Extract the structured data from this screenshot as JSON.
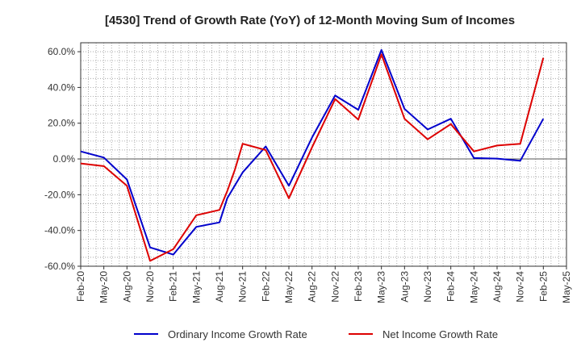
{
  "chart_data": {
    "type": "line",
    "title": "[4530]  Trend of Growth Rate (YoY) of 12-Month Moving Sum of Incomes",
    "xlabel": "",
    "ylabel": "",
    "ylim": [
      -60,
      65
    ],
    "yticks": [
      -60,
      -40,
      -20,
      0,
      20,
      40,
      60
    ],
    "ytick_labels": [
      "-60.0%",
      "-40.0%",
      "-20.0%",
      "0.0%",
      "20.0%",
      "40.0%",
      "60.0%"
    ],
    "x": [
      "Feb-20",
      "Mar-20",
      "Apr-20",
      "May-20",
      "Jun-20",
      "Jul-20",
      "Aug-20",
      "Sep-20",
      "Oct-20",
      "Nov-20",
      "Dec-20",
      "Jan-21",
      "Feb-21",
      "Mar-21",
      "Apr-21",
      "May-21",
      "Jun-21",
      "Jul-21",
      "Aug-21",
      "Sep-21",
      "Oct-21",
      "Nov-21",
      "Dec-21",
      "Jan-22",
      "Feb-22",
      "Mar-22",
      "Apr-22",
      "May-22",
      "Jun-22",
      "Jul-22",
      "Aug-22",
      "Sep-22",
      "Oct-22",
      "Nov-22",
      "Dec-22",
      "Jan-23",
      "Feb-23",
      "Mar-23",
      "Apr-23",
      "May-23",
      "Jun-23",
      "Jul-23",
      "Aug-23",
      "Sep-23",
      "Oct-23",
      "Nov-23",
      "Dec-23",
      "Jan-24",
      "Feb-24",
      "Mar-24",
      "Apr-24",
      "May-24",
      "Jun-24",
      "Jul-24",
      "Aug-24",
      "Sep-24",
      "Oct-24",
      "Nov-24",
      "Dec-24",
      "Jan-25",
      "Feb-25",
      "Mar-25",
      "Apr-25",
      "May-25"
    ],
    "xtick_labels": [
      "Feb-20",
      "May-20",
      "Aug-20",
      "Nov-20",
      "Feb-21",
      "May-21",
      "Aug-21",
      "Nov-21",
      "Feb-22",
      "May-22",
      "Aug-22",
      "Nov-22",
      "Feb-23",
      "May-23",
      "Aug-23",
      "Nov-23",
      "Feb-24",
      "May-24",
      "Aug-24",
      "Nov-24",
      "Feb-25",
      "May-25"
    ],
    "grid": true,
    "legend_position": "bottom",
    "series": [
      {
        "name": "Ordinary Income Growth Rate",
        "color": "#0000cc",
        "points": [
          [
            "Feb-20",
            4.2
          ],
          [
            "May-20",
            0.8
          ],
          [
            "Aug-20",
            -11.5
          ],
          [
            "Nov-20",
            -49.5
          ],
          [
            "Feb-21",
            -53.5
          ],
          [
            "May-21",
            -38.0
          ],
          [
            "Aug-21",
            -35.5
          ],
          [
            "Sep-21",
            -22.0
          ],
          [
            "Nov-21",
            -7.5
          ],
          [
            "Feb-22",
            7.0
          ],
          [
            "May-22",
            -15.0
          ],
          [
            "Aug-22",
            12.0
          ],
          [
            "Nov-22",
            35.5
          ],
          [
            "Feb-23",
            27.5
          ],
          [
            "May-23",
            61.0
          ],
          [
            "Aug-23",
            28.0
          ],
          [
            "Nov-23",
            16.5
          ],
          [
            "Feb-24",
            22.5
          ],
          [
            "May-24",
            0.5
          ],
          [
            "Aug-24",
            0.2
          ],
          [
            "Nov-24",
            -1.0
          ],
          [
            "Feb-25",
            22.5
          ]
        ]
      },
      {
        "name": "Net Income Growth Rate",
        "color": "#dd0000",
        "points": [
          [
            "Feb-20",
            -2.5
          ],
          [
            "May-20",
            -4.0
          ],
          [
            "Aug-20",
            -15.0
          ],
          [
            "Nov-20",
            -57.0
          ],
          [
            "Feb-21",
            -50.5
          ],
          [
            "May-21",
            -31.5
          ],
          [
            "Aug-21",
            -28.5
          ],
          [
            "Sep-21",
            -18.0
          ],
          [
            "Oct-21",
            -6.0
          ],
          [
            "Nov-21",
            8.5
          ],
          [
            "Feb-22",
            5.0
          ],
          [
            "May-22",
            -22.0
          ],
          [
            "Aug-22",
            6.5
          ],
          [
            "Nov-22",
            33.5
          ],
          [
            "Feb-23",
            22.0
          ],
          [
            "May-23",
            58.5
          ],
          [
            "Aug-23",
            22.5
          ],
          [
            "Nov-23",
            11.0
          ],
          [
            "Feb-24",
            19.5
          ],
          [
            "May-24",
            4.2
          ],
          [
            "Aug-24",
            7.5
          ],
          [
            "Nov-24",
            8.5
          ],
          [
            "Feb-25",
            56.5
          ]
        ]
      }
    ]
  }
}
